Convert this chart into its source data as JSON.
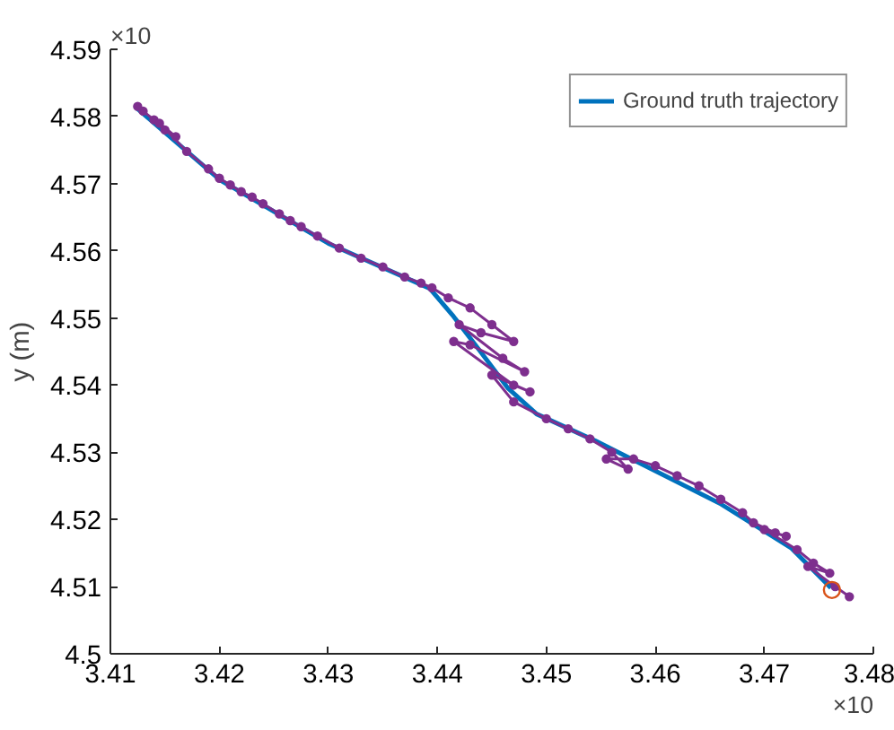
{
  "chart_data": {
    "type": "line",
    "ylabel": "y (m)",
    "xlim": [
      3.41,
      3.48
    ],
    "xticks": [
      3.41,
      3.42,
      3.43,
      3.44,
      3.45,
      3.46,
      3.47,
      3.48
    ],
    "ylim": [
      4.5,
      4.59
    ],
    "yticks": [
      4.5,
      4.51,
      4.52,
      4.53,
      4.54,
      4.55,
      4.56,
      4.57,
      4.58,
      4.59
    ],
    "grid": false,
    "legend": "top right",
    "annotations": [
      "×10",
      "×10"
    ],
    "series": [
      {
        "name": "Ground truth trajectory",
        "color": "#0072bd",
        "marker": "none",
        "x": [
          3.4123,
          3.4201,
          3.43,
          3.4393,
          3.4414,
          3.4439,
          3.4465,
          3.4491,
          3.4545,
          3.461,
          3.4659,
          3.4725,
          3.4761
        ],
        "values": [
          4.5814,
          4.5705,
          4.5611,
          4.5544,
          4.5504,
          4.5451,
          4.5395,
          4.5357,
          4.5317,
          4.5264,
          4.5224,
          4.5157,
          4.5098
        ]
      },
      {
        "color": "#7e2f8e",
        "marker": "circle",
        "x": [
          3.4125,
          3.413,
          3.414,
          3.415,
          3.416,
          3.4145,
          3.417,
          3.419,
          3.42,
          3.421,
          3.422,
          3.423,
          3.424,
          3.4255,
          3.4265,
          3.4275,
          3.429,
          3.431,
          3.433,
          3.435,
          3.437,
          3.4385,
          3.4395,
          3.441,
          3.443,
          3.445,
          3.447,
          3.444,
          3.442,
          3.446,
          3.448,
          3.443,
          3.4415,
          3.447,
          3.4485,
          3.445,
          3.447,
          3.45,
          3.452,
          3.454,
          3.456,
          3.4575,
          3.4555,
          3.458,
          3.46,
          3.462,
          3.464,
          3.466,
          3.468,
          3.469,
          3.471,
          3.472,
          3.47,
          3.473,
          3.4745,
          3.476,
          3.474,
          3.4765,
          3.4778
        ],
        "values": [
          4.5815,
          4.5808,
          4.5795,
          4.578,
          4.577,
          4.579,
          4.5748,
          4.5722,
          4.5708,
          4.5698,
          4.5688,
          4.568,
          4.567,
          4.5655,
          4.5645,
          4.5636,
          4.5622,
          4.5604,
          4.5589,
          4.5576,
          4.5561,
          4.5552,
          4.5545,
          4.553,
          4.5515,
          4.549,
          4.5465,
          4.5478,
          4.549,
          4.544,
          4.542,
          4.546,
          4.5465,
          4.54,
          4.539,
          4.5415,
          4.5375,
          4.535,
          4.5335,
          4.532,
          4.53,
          4.5275,
          4.529,
          4.529,
          4.528,
          4.5265,
          4.525,
          4.523,
          4.521,
          4.5195,
          4.518,
          4.5175,
          4.5185,
          4.5155,
          4.5135,
          4.512,
          4.513,
          4.51,
          4.5085
        ]
      },
      {
        "type": "scatter",
        "color": "#d95319",
        "marker": "circle",
        "x": [
          3.4762
        ],
        "values": [
          4.5095
        ]
      }
    ]
  }
}
